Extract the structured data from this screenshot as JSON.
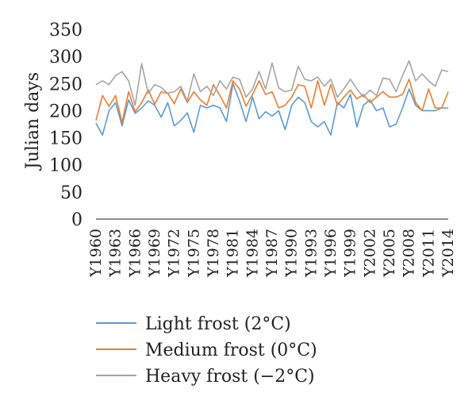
{
  "chart_data": {
    "type": "line",
    "title": "",
    "xlabel": "",
    "ylabel": "Julian days",
    "ylim": [
      0,
      350
    ],
    "yticks": [
      0,
      50,
      100,
      150,
      200,
      250,
      300,
      350
    ],
    "grid": false,
    "legend_position": "bottom",
    "x": [
      "Y1960",
      "Y1961",
      "Y1962",
      "Y1963",
      "Y1964",
      "Y1965",
      "Y1966",
      "Y1967",
      "Y1968",
      "Y1969",
      "Y1970",
      "Y1971",
      "Y1972",
      "Y1973",
      "Y1974",
      "Y1975",
      "Y1976",
      "Y1977",
      "Y1978",
      "Y1979",
      "Y1980",
      "Y1981",
      "Y1982",
      "Y1983",
      "Y1984",
      "Y1985",
      "Y1986",
      "Y1987",
      "Y1988",
      "Y1989",
      "Y1990",
      "Y1991",
      "Y1992",
      "Y1993",
      "Y1994",
      "Y1995",
      "Y1996",
      "Y1997",
      "Y1998",
      "Y1999",
      "Y2000",
      "Y2001",
      "Y2002",
      "Y2003",
      "Y2004",
      "Y2005",
      "Y2006",
      "Y2007",
      "Y2008",
      "Y2009",
      "Y2010",
      "Y2011",
      "Y2012",
      "Y2013",
      "Y2014"
    ],
    "x_tick_labels": [
      "Y1960",
      "Y1963",
      "Y1966",
      "Y1969",
      "Y1972",
      "Y1975",
      "Y1978",
      "Y1981",
      "Y1984",
      "Y1987",
      "Y1990",
      "Y1993",
      "Y1996",
      "Y1999",
      "Y2002",
      "Y2005",
      "Y2008",
      "Y2011",
      "Y2014"
    ],
    "series": [
      {
        "name": "Light frost (2°C)",
        "color": "#5b9bd5",
        "values": [
          177,
          155,
          200,
          215,
          172,
          220,
          195,
          205,
          218,
          210,
          188,
          215,
          172,
          182,
          196,
          160,
          210,
          205,
          210,
          205,
          180,
          250,
          218,
          180,
          225,
          185,
          198,
          190,
          200,
          165,
          210,
          225,
          215,
          180,
          170,
          180,
          155,
          215,
          205,
          230,
          170,
          210,
          220,
          200,
          205,
          170,
          175,
          205,
          240,
          210,
          200,
          200,
          200,
          205,
          205
        ]
      },
      {
        "name": "Medium frost (0°C)",
        "color": "#ed7d31",
        "values": [
          182,
          228,
          208,
          228,
          178,
          235,
          198,
          215,
          238,
          212,
          235,
          232,
          213,
          240,
          215,
          235,
          220,
          210,
          248,
          228,
          205,
          255,
          240,
          208,
          230,
          255,
          230,
          235,
          205,
          210,
          225,
          248,
          245,
          205,
          255,
          210,
          248,
          210,
          225,
          238,
          222,
          230,
          215,
          225,
          235,
          225,
          225,
          230,
          258,
          215,
          200,
          240,
          205,
          205,
          235
        ]
      },
      {
        "name": "Heavy frost (−2°C)",
        "color": "#a5a5a5",
        "values": [
          248,
          255,
          248,
          265,
          272,
          255,
          210,
          287,
          232,
          248,
          243,
          232,
          235,
          245,
          218,
          268,
          235,
          245,
          228,
          255,
          240,
          262,
          258,
          225,
          240,
          272,
          240,
          288,
          242,
          235,
          238,
          282,
          258,
          255,
          262,
          245,
          258,
          225,
          240,
          258,
          240,
          225,
          238,
          228,
          260,
          258,
          235,
          265,
          292,
          255,
          268,
          255,
          245,
          275,
          272
        ]
      }
    ]
  }
}
